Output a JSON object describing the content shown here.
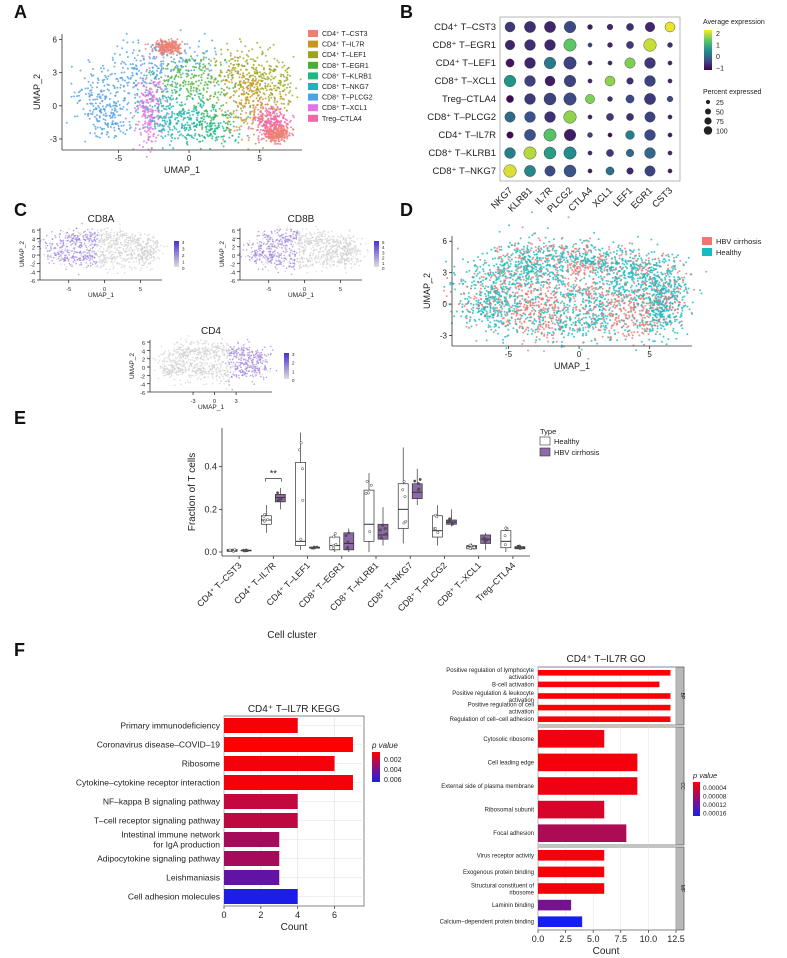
{
  "panels": {
    "a": "A",
    "b": "B",
    "c": "C",
    "d": "D",
    "e": "E",
    "f": "F"
  },
  "chart_data": [
    {
      "type": "scatter",
      "name": "umap_clusters",
      "xlabel": "UMAP_1",
      "ylabel": "UMAP_2",
      "xticks": [
        "-5",
        "0",
        "5"
      ],
      "yticks": [
        "-3",
        "0",
        "3",
        "6"
      ],
      "legend": [
        {
          "label": "CD4⁺ T–CST3",
          "color": "#f07f73"
        },
        {
          "label": "CD4⁺ T–IL7R",
          "color": "#c99520"
        },
        {
          "label": "CD4⁺ T–LEF1",
          "color": "#9aa51d"
        },
        {
          "label": "CD8⁺ T–EGR1",
          "color": "#45b035"
        },
        {
          "label": "CD8⁺ T–KLRB1",
          "color": "#1fb785"
        },
        {
          "label": "CD8⁺ T–NKG7",
          "color": "#1eb3b9"
        },
        {
          "label": "CD8⁺ T–PLCG2",
          "color": "#4fa0e6"
        },
        {
          "label": "CD8⁺ T–XCL1",
          "color": "#e374e0"
        },
        {
          "label": "Treg–CTLA4",
          "color": "#f267a8"
        }
      ]
    },
    {
      "type": "scatter",
      "name": "dot_plot",
      "rows": [
        "CD4⁺ T–CST3",
        "CD8⁺ T–EGR1",
        "CD4⁺ T–LEF1",
        "CD8⁺ T–XCL1",
        "Treg–CTLA4",
        "CD8⁺ T–PLCG2",
        "CD4⁺ T–IL7R",
        "CD8⁺ T–KLRB1",
        "CD8⁺ T–NKG7"
      ],
      "cols": [
        "NKG7",
        "KLRB1",
        "IL7R",
        "PLCG2",
        "CTLA4",
        "XCL1",
        "LEF1",
        "EGR1",
        "CST3"
      ],
      "expression": [
        [
          -0.4,
          -0.5,
          -0.6,
          -0.2,
          -0.7,
          -0.6,
          -0.5,
          -0.6,
          2.4
        ],
        [
          -0.6,
          -0.5,
          -0.6,
          1.6,
          -0.3,
          -0.6,
          -0.4,
          2.2,
          -0.5
        ],
        [
          -0.8,
          -0.6,
          0.4,
          -0.3,
          -0.6,
          -0.6,
          1.8,
          -0.4,
          -0.6
        ],
        [
          0.8,
          -0.3,
          -0.7,
          -0.3,
          -0.6,
          1.9,
          -0.5,
          -0.3,
          -0.6
        ],
        [
          -0.9,
          -0.4,
          -0.3,
          -0.2,
          1.8,
          -0.5,
          -0.2,
          -0.4,
          -0.2
        ],
        [
          0.2,
          -0.1,
          -0.5,
          1.9,
          -0.6,
          -0.4,
          -0.5,
          -0.3,
          -0.6
        ],
        [
          -0.9,
          -0.1,
          1.5,
          -0.7,
          -0.3,
          -0.9,
          0.5,
          -0.2,
          -0.7
        ],
        [
          0.5,
          2.1,
          0.9,
          0.7,
          -0.6,
          -0.4,
          0.2,
          0.2,
          -0.6
        ],
        [
          2.3,
          0.6,
          -0.2,
          -0.1,
          -0.7,
          0.3,
          -0.6,
          -0.3,
          -0.7
        ]
      ],
      "percent": [
        [
          60,
          75,
          75,
          80,
          15,
          20,
          30,
          55,
          60
        ],
        [
          55,
          70,
          70,
          90,
          10,
          15,
          30,
          95,
          15
        ],
        [
          40,
          70,
          80,
          90,
          10,
          10,
          65,
          70,
          10
        ],
        [
          80,
          70,
          60,
          80,
          10,
          60,
          25,
          70,
          10
        ],
        [
          30,
          70,
          85,
          90,
          50,
          15,
          40,
          75,
          20
        ],
        [
          65,
          70,
          70,
          95,
          10,
          30,
          30,
          65,
          10
        ],
        [
          25,
          75,
          90,
          80,
          15,
          10,
          45,
          70,
          10
        ],
        [
          70,
          90,
          85,
          90,
          10,
          30,
          35,
          70,
          10
        ],
        [
          95,
          75,
          65,
          85,
          10,
          40,
          25,
          65,
          10
        ]
      ],
      "legend_title_color": "Average expression",
      "color_ticks": [
        "2",
        "1",
        "0",
        "−1"
      ],
      "legend_title_size": "Percent expressed",
      "size_ticks": [
        "25",
        "50",
        "75",
        "100"
      ]
    },
    {
      "type": "scatter",
      "name": "feature_cd8a",
      "title": "CD8A",
      "xlabel": "UMAP_1",
      "ylabel": "UMAP_2",
      "xticks": [
        "-5",
        "0",
        "5"
      ],
      "yticks": [
        "-6",
        "-4",
        "-2",
        "0",
        "2",
        "4",
        "6"
      ],
      "scale": [
        "4",
        "3",
        "2",
        "1",
        "0"
      ]
    },
    {
      "type": "scatter",
      "name": "feature_cd8b",
      "title": "CD8B",
      "xlabel": "UMAP_1",
      "ylabel": "UMAP_2",
      "xticks": [
        "-5",
        "0",
        "5"
      ],
      "yticks": [
        "-6",
        "-4",
        "-2",
        "0",
        "2",
        "4",
        "6"
      ],
      "scale": [
        "5",
        "4",
        "3",
        "2",
        "1",
        "0"
      ]
    },
    {
      "type": "scatter",
      "name": "feature_cd4",
      "title": "CD4",
      "xlabel": "UMAP_1",
      "ylabel": "UMAP_2",
      "xticks": [
        "-3",
        "0",
        "3"
      ],
      "yticks": [
        "-6",
        "-4",
        "-2",
        "0",
        "2",
        "4",
        "6"
      ],
      "scale": [
        "3",
        "2",
        "1",
        "0"
      ]
    },
    {
      "type": "scatter",
      "name": "umap_condition",
      "xlabel": "UMAP_1",
      "ylabel": "UMAP_2",
      "xticks": [
        "-5",
        "0",
        "5"
      ],
      "yticks": [
        "-3",
        "0",
        "3",
        "6"
      ],
      "legend": [
        {
          "label": "HBV cirrhosis",
          "color": "#f0766e"
        },
        {
          "label": "Healthy",
          "color": "#17bcc0"
        }
      ]
    },
    {
      "type": "box",
      "name": "fraction_boxplot",
      "ylabel": "Fraction of T cells",
      "xlabel": "Cell cluster",
      "ylim": [
        0,
        0.6
      ],
      "yticks": [
        "0.0",
        "0.2",
        "0.4"
      ],
      "categories": [
        "CD4⁺ T–CST3",
        "CD4⁺ T–IL7R",
        "CD4⁺ T–LEF1",
        "CD8⁺ T–EGR1",
        "CD8⁺ T–KLRB1",
        "CD8⁺ T–NKG7",
        "CD8⁺ T–PLCG2",
        "CD8⁺ T–XCL1",
        "Treg–CTLA4"
      ],
      "legend_title": "Type",
      "series": [
        {
          "name": "Healthy",
          "color": "#ffffff",
          "boxes": [
            [
              0.0,
              0.003,
              0.008,
              0.012,
              0.015
            ],
            [
              0.09,
              0.13,
              0.15,
              0.17,
              0.22
            ],
            [
              0.01,
              0.03,
              0.05,
              0.42,
              0.56
            ],
            [
              0.0,
              0.01,
              0.03,
              0.07,
              0.09
            ],
            [
              0.0,
              0.05,
              0.13,
              0.29,
              0.37
            ],
            [
              0.04,
              0.11,
              0.2,
              0.32,
              0.49
            ],
            [
              0.03,
              0.07,
              0.1,
              0.17,
              0.22
            ],
            [
              0.01,
              0.015,
              0.025,
              0.03,
              0.04
            ],
            [
              0.0,
              0.02,
              0.05,
              0.1,
              0.12
            ]
          ]
        },
        {
          "name": "HBV cirrhosis",
          "color": "#8e68a8",
          "boxes": [
            [
              0.002,
              0.005,
              0.007,
              0.009,
              0.012
            ],
            [
              0.2,
              0.235,
              0.255,
              0.27,
              0.3
            ],
            [
              0.015,
              0.018,
              0.02,
              0.023,
              0.025
            ],
            [
              0.0,
              0.01,
              0.04,
              0.09,
              0.11
            ],
            [
              0.03,
              0.06,
              0.08,
              0.13,
              0.21
            ],
            [
              0.22,
              0.25,
              0.28,
              0.32,
              0.39
            ],
            [
              0.12,
              0.13,
              0.14,
              0.15,
              0.2
            ],
            [
              0.01,
              0.04,
              0.06,
              0.08,
              0.09
            ],
            [
              0.01,
              0.015,
              0.02,
              0.025,
              0.03
            ]
          ]
        }
      ],
      "annotation": "**"
    },
    {
      "type": "bar",
      "name": "kegg_bar",
      "title": "CD4⁺ T–IL7R KEGG",
      "xlabel": "Count",
      "xlim": [
        0,
        7.6
      ],
      "xticks": [
        "0",
        "2",
        "4",
        "6"
      ],
      "categories": [
        "Primary immunodeficiency",
        "Coronavirus disease–COVID–19",
        "Ribosome",
        "Cytokine–cytokine receptor interaction",
        "NF–kappa B signaling pathway",
        "T–cell receptor signaling pathway",
        "Intestinal immune network for IgA production",
        "Adipocytokine signaling pathway",
        "Leishmaniasis",
        "Cell adhesion molecules"
      ],
      "values": [
        4,
        7,
        6,
        7,
        4,
        4,
        3,
        3,
        3,
        4
      ],
      "pvalues": [
        0.0008,
        0.0006,
        0.0009,
        0.0009,
        0.0021,
        0.0022,
        0.0028,
        0.0028,
        0.0045,
        0.0062
      ],
      "legend_title": "p value",
      "legend_ticks": [
        "0.002",
        "0.004",
        "0.006"
      ]
    },
    {
      "type": "bar",
      "name": "go_bar",
      "title": "CD4⁺ T–IL7R GO",
      "xlabel": "Count",
      "xlim": [
        0,
        12.5
      ],
      "xticks": [
        "0.0",
        "2.5",
        "5.0",
        "7.5",
        "10.0",
        "12.5"
      ],
      "groups": [
        {
          "strip": "BP",
          "categories": [
            "Positive regulation of lymphocyte activation",
            "B-cell activation",
            "Positive regulation & leukocyte activation",
            "Positive regulation of cell activation",
            "Regulation of cell–cell adhesion"
          ],
          "values": [
            12,
            11,
            12,
            12,
            12
          ],
          "pvalues": [
            2e-06,
            5e-06,
            3e-06,
            3e-06,
            4e-06
          ]
        },
        {
          "strip": "CC",
          "categories": [
            "Cytosolic ribosome",
            "Cell leading edge",
            "External side of plasma membrane",
            "Ribosomal subunit",
            "Focal adhesion"
          ],
          "values": [
            6,
            9,
            9,
            6,
            8
          ],
          "pvalues": [
            1e-05,
            8e-06,
            1.2e-05,
            3e-05,
            6e-05
          ]
        },
        {
          "strip": "MF",
          "categories": [
            "Virus receptor activity",
            "Exogenous protein binding",
            "Structural constituent of  ribosome",
            "Laminin binding",
            "Calcium–dependent protein binding"
          ],
          "values": [
            6,
            6,
            6,
            3,
            4
          ],
          "pvalues": [
            6e-06,
            6e-06,
            8e-06,
            0.0001,
            0.00017
          ]
        }
      ],
      "legend_title": "p value",
      "legend_ticks": [
        "0.00004",
        "0.00008",
        "0.00012",
        "0.00016"
      ]
    }
  ]
}
